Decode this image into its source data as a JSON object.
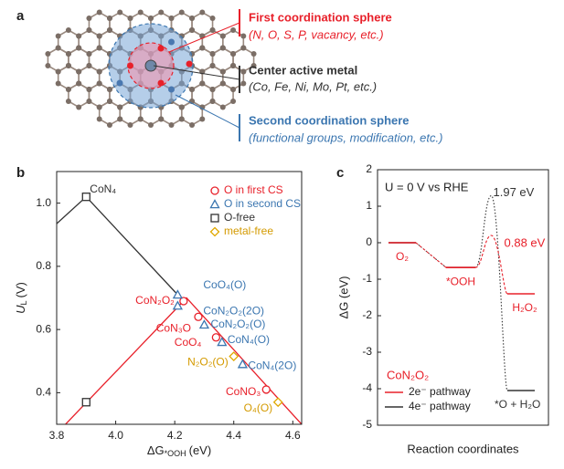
{
  "figure_a": {
    "label": "a",
    "first_title": "First coordination sphere",
    "first_detail": "(N, O, S, P, vacancy, etc.)",
    "center_title": "Center active metal",
    "center_detail": "(Co, Fe, Ni, Mo, Pt, etc.)",
    "second_title": "Second coordination sphere",
    "second_detail": "(functional groups, modification, etc.)"
  },
  "chart_data": [
    {
      "type": "scatter",
      "panel_label": "b",
      "xlabel": {
        "main": "ΔG",
        "sub": "*OOH",
        "unit": "(eV)"
      },
      "ylabel": {
        "main": "U",
        "sub": "L",
        "unit": "(V)"
      },
      "xlim": [
        3.8,
        4.63
      ],
      "xticks": [
        3.8,
        {
          "value": 4,
          "label": "4.0"
        },
        4.2,
        4.4,
        4.6
      ],
      "ylim": [
        0.3,
        1.1
      ],
      "yticks": [
        0.4,
        0.6,
        0.8,
        {
          "value": 1,
          "label": "1.0"
        }
      ],
      "legend": "upper right",
      "lines": [
        {
          "color": "#333333",
          "x": [
            3.8,
            3.9,
            4.22
          ],
          "y": [
            0.935,
            1.02,
            0.7
          ]
        },
        {
          "color": "#e8202a",
          "x": [
            3.83,
            4.24,
            4.63
          ],
          "y": [
            0.3,
            0.7,
            0.3
          ]
        }
      ],
      "series": [
        {
          "name": "O in first CS",
          "color": "#e8202a",
          "marker": "circle",
          "x": [
            4.23,
            4.28,
            4.34,
            4.51
          ],
          "y": [
            0.69,
            0.64,
            0.575,
            0.41
          ],
          "labels": [
            "CoN₂O₂",
            "CoN₃O",
            "CoO₄",
            "CoNO₃"
          ]
        },
        {
          "name": "O in second CS",
          "color": "#3b76b0",
          "marker": "triangle",
          "x": [
            4.21,
            4.21,
            4.3,
            4.36,
            4.43
          ],
          "y": [
            0.71,
            0.675,
            0.615,
            0.56,
            0.49
          ],
          "labels": [
            "CoO₄(O)",
            "CoN₂O₂(2O)",
            "CoN₂O₂(O)",
            "CoN₄(O)",
            "CoN₄(2O)"
          ]
        },
        {
          "name": "O-free",
          "color": "#333333",
          "marker": "square",
          "x": [
            3.9,
            3.9
          ],
          "y": [
            1.02,
            0.37
          ],
          "labels": [
            "CoN₄",
            null
          ]
        },
        {
          "name": "metal-free",
          "color": "#e0a800",
          "marker": "diamond",
          "x": [
            4.4,
            4.55
          ],
          "y": [
            0.515,
            0.37
          ],
          "labels": [
            "N₂O₂(O)",
            "O₄(O)"
          ]
        }
      ]
    },
    {
      "type": "step",
      "panel_label": "c",
      "ylabel": "ΔG (eV)",
      "xlabel": "Reaction coordinates",
      "ylim": [
        -5,
        2
      ],
      "yticks": [
        -5,
        -4,
        -3,
        -2,
        -1,
        0,
        1,
        2
      ],
      "condition": "U = 0 V vs RHE",
      "legend_title": "CoN₂O₂",
      "categories": [
        "O₂",
        "*OOH",
        "H₂O₂"
      ],
      "series": [
        {
          "name": "2e⁻ pathway",
          "color": "#e8202a",
          "values": [
            0,
            -0.68,
            -1.4
          ],
          "peak": 0.2,
          "peak_label": "0.88 eV"
        },
        {
          "name": "4e⁻ pathway",
          "color": "#333333",
          "values": [
            0,
            -0.68,
            -4.05
          ],
          "peak": 1.29,
          "peak_label": "1.97 eV",
          "end_label": "*O + H₂O"
        }
      ]
    }
  ]
}
